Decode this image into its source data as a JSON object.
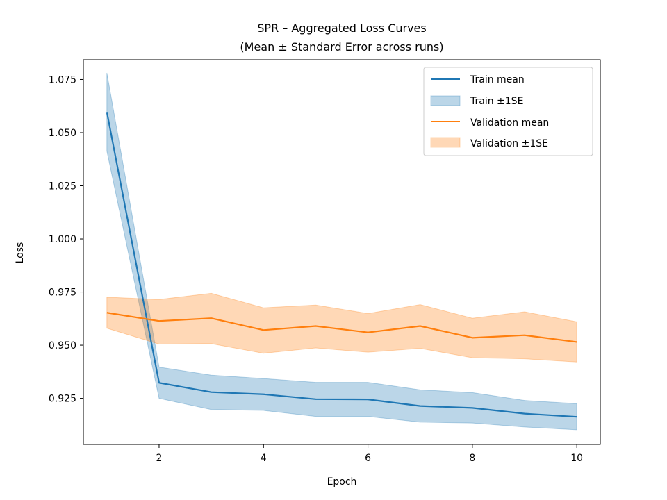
{
  "chart_data": {
    "type": "line",
    "title_line1": "SPR – Aggregated Loss Curves",
    "title_line2": "(Mean ± Standard Error across runs)",
    "xlabel": "Epoch",
    "ylabel": "Loss",
    "xlim": [
      0.55,
      10.45
    ],
    "ylim": [
      0.9033,
      1.0843
    ],
    "xticks": [
      2,
      4,
      6,
      8,
      10
    ],
    "xtick_labels": [
      "2",
      "4",
      "6",
      "8",
      "10"
    ],
    "yticks": [
      0.925,
      0.95,
      0.975,
      1.0,
      1.025,
      1.05,
      1.075
    ],
    "ytick_labels": [
      "0.925",
      "0.950",
      "0.975",
      "1.000",
      "1.025",
      "1.050",
      "1.075"
    ],
    "grid": false,
    "legend_position": "top-right",
    "x": [
      1,
      2,
      3,
      4,
      5,
      6,
      7,
      8,
      9,
      10
    ],
    "series": [
      {
        "name": "Train mean",
        "band_name": "Train ±1SE",
        "color": "#1f77b4",
        "values": [
          1.0597,
          0.9323,
          0.9279,
          0.9269,
          0.9246,
          0.9245,
          0.9214,
          0.9205,
          0.9178,
          0.9163
        ],
        "lower": [
          1.0413,
          0.925,
          0.9197,
          0.9193,
          0.9165,
          0.9165,
          0.9138,
          0.9134,
          0.9115,
          0.9102
        ],
        "upper": [
          1.0781,
          0.9397,
          0.9359,
          0.9343,
          0.9325,
          0.9325,
          0.929,
          0.9277,
          0.924,
          0.9225
        ]
      },
      {
        "name": "Validation mean",
        "band_name": "Validation ±1SE",
        "color": "#ff7f0e",
        "values": [
          0.9653,
          0.9614,
          0.9627,
          0.9571,
          0.959,
          0.956,
          0.959,
          0.9535,
          0.9547,
          0.9515
        ],
        "lower": [
          0.958,
          0.9505,
          0.9507,
          0.9462,
          0.9487,
          0.9467,
          0.9485,
          0.9441,
          0.9436,
          0.9421
        ],
        "upper": [
          0.9726,
          0.9715,
          0.9744,
          0.9676,
          0.9689,
          0.9649,
          0.9691,
          0.9627,
          0.9657,
          0.961
        ]
      }
    ]
  }
}
